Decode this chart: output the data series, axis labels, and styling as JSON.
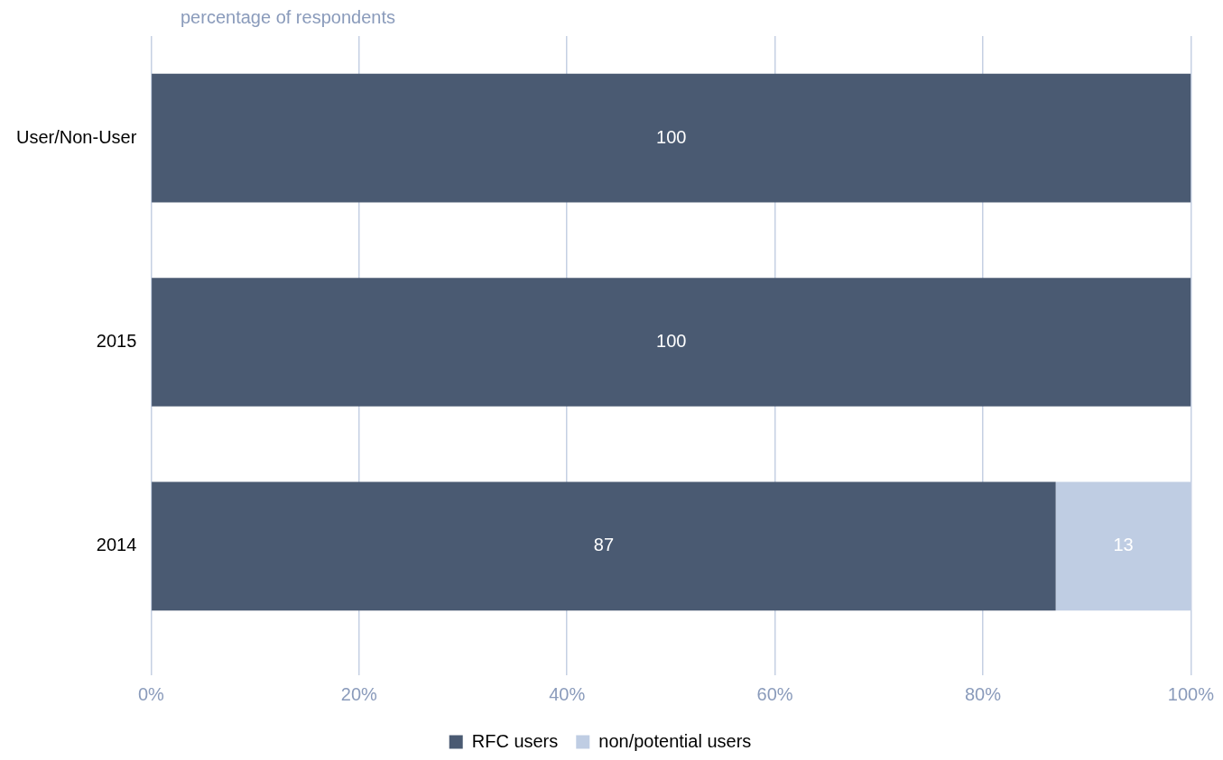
{
  "chart_data": {
    "type": "bar",
    "orientation": "horizontal",
    "stacked": true,
    "xlabel": "percentage of respondents",
    "categories": [
      "User/Non-User",
      "2015",
      "2014"
    ],
    "series": [
      {
        "name": "RFC users",
        "color": "#4a5a72",
        "values": [
          100,
          100,
          87
        ]
      },
      {
        "name": "non/potential users",
        "color": "#bfcde3",
        "values": [
          null,
          null,
          13
        ]
      }
    ],
    "xlim": [
      0,
      100
    ],
    "xticks": [
      {
        "value": 0,
        "label": "0%"
      },
      {
        "value": 20,
        "label": "20%"
      },
      {
        "value": 40,
        "label": "40%"
      },
      {
        "value": 60,
        "label": "60%"
      },
      {
        "value": 80,
        "label": "80%"
      },
      {
        "value": 100,
        "label": "100%"
      }
    ],
    "grid": "x",
    "legend": "bottom",
    "data_labels": true
  }
}
